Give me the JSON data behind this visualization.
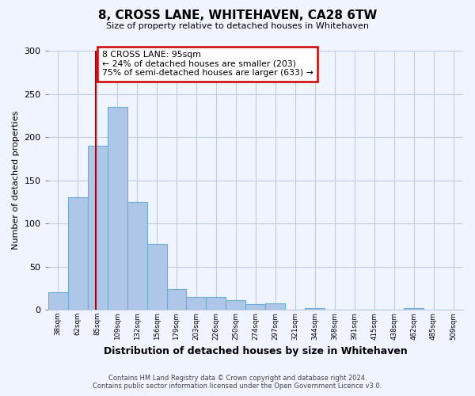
{
  "title": "8, CROSS LANE, WHITEHAVEN, CA28 6TW",
  "subtitle": "Size of property relative to detached houses in Whitehaven",
  "xlabel": "Distribution of detached houses by size in Whitehaven",
  "ylabel": "Number of detached properties",
  "footer_line1": "Contains HM Land Registry data © Crown copyright and database right 2024.",
  "footer_line2": "Contains public sector information licensed under the Open Government Licence v3.0.",
  "bin_labels": [
    "38sqm",
    "62sqm",
    "85sqm",
    "109sqm",
    "132sqm",
    "156sqm",
    "179sqm",
    "203sqm",
    "226sqm",
    "250sqm",
    "274sqm",
    "297sqm",
    "321sqm",
    "344sqm",
    "368sqm",
    "391sqm",
    "415sqm",
    "438sqm",
    "462sqm",
    "485sqm",
    "509sqm"
  ],
  "bar_values": [
    20,
    130,
    190,
    235,
    125,
    76,
    24,
    15,
    15,
    11,
    6,
    7,
    0,
    2,
    0,
    0,
    0,
    0,
    2,
    0,
    0
  ],
  "bar_color": "#aec6e8",
  "bar_edge_color": "#6baed6",
  "property_line_x": 95,
  "bin_edges": [
    38,
    62,
    85,
    109,
    132,
    156,
    179,
    203,
    226,
    250,
    274,
    297,
    321,
    344,
    368,
    391,
    415,
    438,
    462,
    485,
    509
  ],
  "annotation_title": "8 CROSS LANE: 95sqm",
  "annotation_line1": "← 24% of detached houses are smaller (203)",
  "annotation_line2": "75% of semi-detached houses are larger (633) →",
  "annotation_box_color": "#ffffff",
  "annotation_box_edge": "#cc0000",
  "vline_color": "#aa0000",
  "ylim": [
    0,
    300
  ],
  "yticks": [
    0,
    50,
    100,
    150,
    200,
    250,
    300
  ],
  "background_color": "#f0f4ff",
  "grid_color": "#c0cce0"
}
